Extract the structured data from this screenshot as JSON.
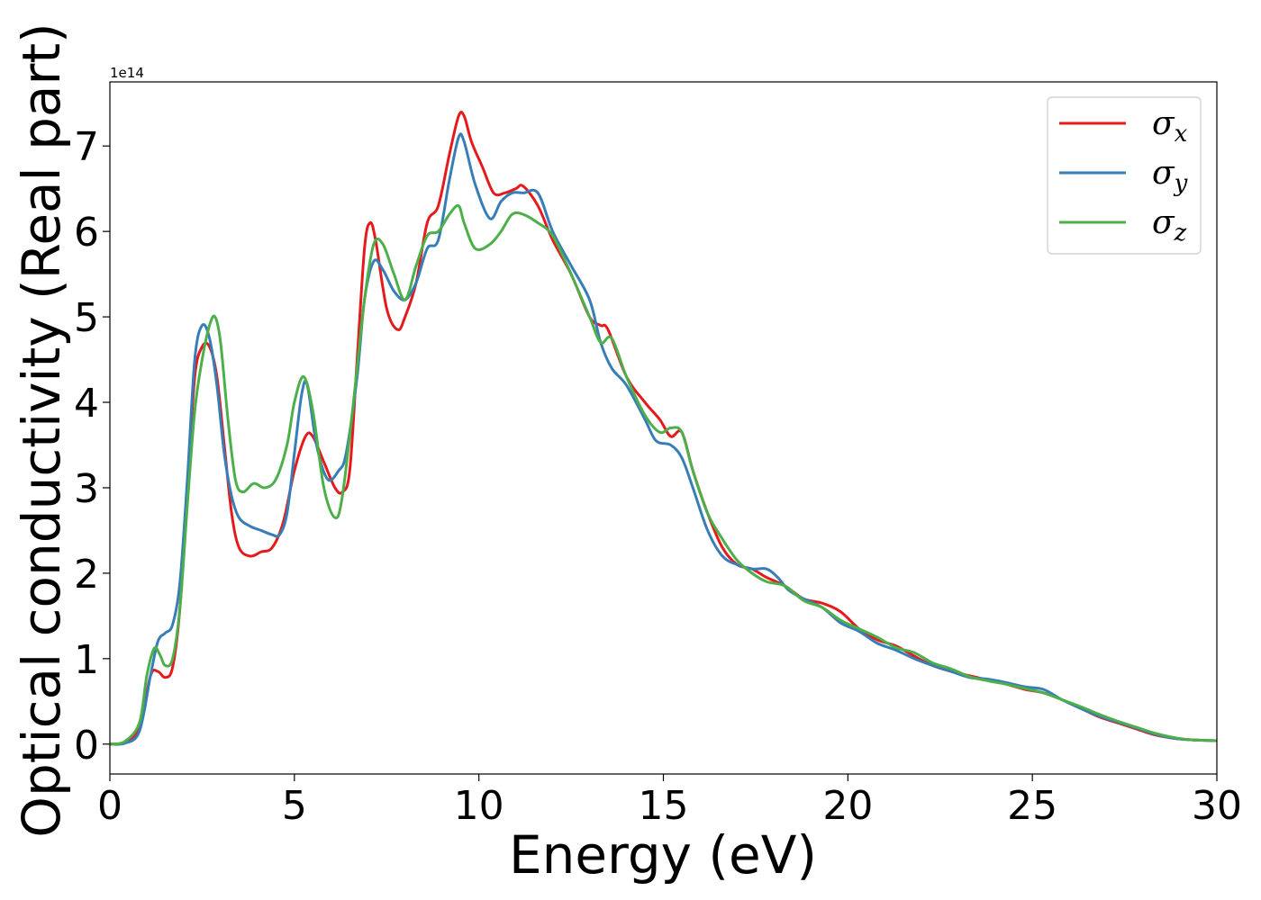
{
  "chart_data": {
    "type": "line",
    "title": "",
    "xlabel": "Energy (eV)",
    "ylabel": "Optical conductivity (Real part)",
    "y_offset_label": "1e14",
    "xlim": [
      0,
      30
    ],
    "ylim": [
      -0.35,
      7.75
    ],
    "x_ticks": [
      0,
      5,
      10,
      15,
      20,
      25,
      30
    ],
    "y_ticks": [
      0,
      1,
      2,
      3,
      4,
      5,
      6,
      7
    ],
    "grid": false,
    "legend_position": "top-right",
    "series": [
      {
        "name": "σx",
        "symbol": "σ",
        "subscript": "x",
        "color": "#e41a1c",
        "points": [
          [
            0,
            0
          ],
          [
            0.4,
            0.02
          ],
          [
            0.8,
            0.2
          ],
          [
            1.1,
            0.8
          ],
          [
            1.3,
            0.85
          ],
          [
            1.5,
            0.78
          ],
          [
            1.7,
            0.9
          ],
          [
            1.9,
            1.6
          ],
          [
            2.1,
            3.0
          ],
          [
            2.3,
            4.3
          ],
          [
            2.5,
            4.65
          ],
          [
            2.7,
            4.65
          ],
          [
            2.9,
            4.3
          ],
          [
            3.1,
            3.5
          ],
          [
            3.3,
            2.7
          ],
          [
            3.5,
            2.3
          ],
          [
            3.8,
            2.2
          ],
          [
            4.1,
            2.25
          ],
          [
            4.4,
            2.3
          ],
          [
            4.7,
            2.6
          ],
          [
            5.0,
            3.2
          ],
          [
            5.3,
            3.6
          ],
          [
            5.5,
            3.6
          ],
          [
            5.8,
            3.3
          ],
          [
            6.1,
            3.0
          ],
          [
            6.3,
            2.95
          ],
          [
            6.5,
            3.2
          ],
          [
            6.7,
            4.5
          ],
          [
            6.9,
            5.8
          ],
          [
            7.05,
            6.1
          ],
          [
            7.2,
            5.9
          ],
          [
            7.5,
            5.1
          ],
          [
            7.8,
            4.85
          ],
          [
            8.0,
            5.0
          ],
          [
            8.3,
            5.4
          ],
          [
            8.6,
            6.1
          ],
          [
            8.9,
            6.3
          ],
          [
            9.2,
            6.9
          ],
          [
            9.45,
            7.35
          ],
          [
            9.6,
            7.35
          ],
          [
            9.8,
            7.05
          ],
          [
            10.1,
            6.75
          ],
          [
            10.4,
            6.45
          ],
          [
            10.7,
            6.45
          ],
          [
            11.0,
            6.5
          ],
          [
            11.2,
            6.53
          ],
          [
            11.6,
            6.3
          ],
          [
            12.0,
            5.9
          ],
          [
            12.5,
            5.5
          ],
          [
            13.0,
            5.0
          ],
          [
            13.3,
            4.9
          ],
          [
            13.5,
            4.85
          ],
          [
            14.0,
            4.3
          ],
          [
            14.5,
            4.0
          ],
          [
            14.9,
            3.8
          ],
          [
            15.2,
            3.6
          ],
          [
            15.5,
            3.65
          ],
          [
            15.8,
            3.2
          ],
          [
            16.2,
            2.7
          ],
          [
            16.6,
            2.3
          ],
          [
            17.0,
            2.1
          ],
          [
            17.4,
            2.05
          ],
          [
            17.8,
            1.95
          ],
          [
            18.3,
            1.85
          ],
          [
            18.8,
            1.7
          ],
          [
            19.3,
            1.65
          ],
          [
            19.8,
            1.55
          ],
          [
            20.3,
            1.35
          ],
          [
            20.8,
            1.22
          ],
          [
            21.3,
            1.15
          ],
          [
            21.8,
            1.03
          ],
          [
            22.3,
            0.92
          ],
          [
            22.8,
            0.85
          ],
          [
            23.3,
            0.8
          ],
          [
            23.8,
            0.75
          ],
          [
            24.3,
            0.7
          ],
          [
            24.8,
            0.64
          ],
          [
            25.3,
            0.6
          ],
          [
            25.8,
            0.52
          ],
          [
            26.3,
            0.42
          ],
          [
            26.8,
            0.32
          ],
          [
            27.3,
            0.25
          ],
          [
            27.8,
            0.18
          ],
          [
            28.3,
            0.11
          ],
          [
            28.8,
            0.07
          ],
          [
            29.3,
            0.05
          ],
          [
            30,
            0.04
          ]
        ]
      },
      {
        "name": "σy",
        "symbol": "σ",
        "subscript": "y",
        "color": "#377eb8",
        "points": [
          [
            0,
            0
          ],
          [
            0.4,
            0.01
          ],
          [
            0.8,
            0.15
          ],
          [
            1.1,
            0.8
          ],
          [
            1.3,
            1.2
          ],
          [
            1.5,
            1.3
          ],
          [
            1.7,
            1.4
          ],
          [
            1.9,
            1.9
          ],
          [
            2.1,
            3.1
          ],
          [
            2.3,
            4.5
          ],
          [
            2.5,
            4.9
          ],
          [
            2.7,
            4.75
          ],
          [
            2.9,
            4.2
          ],
          [
            3.1,
            3.4
          ],
          [
            3.3,
            2.9
          ],
          [
            3.5,
            2.65
          ],
          [
            3.8,
            2.55
          ],
          [
            4.1,
            2.5
          ],
          [
            4.4,
            2.45
          ],
          [
            4.6,
            2.45
          ],
          [
            4.8,
            2.7
          ],
          [
            5.0,
            3.4
          ],
          [
            5.2,
            4.1
          ],
          [
            5.35,
            4.2
          ],
          [
            5.6,
            3.5
          ],
          [
            5.9,
            3.1
          ],
          [
            6.2,
            3.2
          ],
          [
            6.4,
            3.4
          ],
          [
            6.7,
            4.3
          ],
          [
            6.9,
            5.2
          ],
          [
            7.15,
            5.65
          ],
          [
            7.4,
            5.55
          ],
          [
            7.7,
            5.3
          ],
          [
            8.0,
            5.2
          ],
          [
            8.3,
            5.4
          ],
          [
            8.6,
            5.8
          ],
          [
            8.9,
            5.9
          ],
          [
            9.2,
            6.6
          ],
          [
            9.45,
            7.1
          ],
          [
            9.6,
            7.05
          ],
          [
            9.9,
            6.55
          ],
          [
            10.3,
            6.15
          ],
          [
            10.6,
            6.35
          ],
          [
            10.9,
            6.45
          ],
          [
            11.2,
            6.45
          ],
          [
            11.6,
            6.45
          ],
          [
            12.0,
            6.0
          ],
          [
            12.5,
            5.6
          ],
          [
            13.0,
            5.2
          ],
          [
            13.3,
            4.7
          ],
          [
            13.6,
            4.4
          ],
          [
            14.0,
            4.2
          ],
          [
            14.5,
            3.8
          ],
          [
            14.8,
            3.55
          ],
          [
            15.2,
            3.5
          ],
          [
            15.5,
            3.35
          ],
          [
            15.8,
            3.0
          ],
          [
            16.2,
            2.5
          ],
          [
            16.6,
            2.2
          ],
          [
            17.0,
            2.1
          ],
          [
            17.4,
            2.05
          ],
          [
            17.8,
            2.05
          ],
          [
            18.1,
            1.95
          ],
          [
            18.4,
            1.8
          ],
          [
            18.8,
            1.7
          ],
          [
            19.3,
            1.6
          ],
          [
            19.8,
            1.42
          ],
          [
            20.3,
            1.32
          ],
          [
            20.8,
            1.18
          ],
          [
            21.3,
            1.1
          ],
          [
            21.8,
            1.0
          ],
          [
            22.3,
            0.92
          ],
          [
            22.8,
            0.85
          ],
          [
            23.3,
            0.78
          ],
          [
            23.8,
            0.76
          ],
          [
            24.3,
            0.72
          ],
          [
            24.8,
            0.67
          ],
          [
            25.3,
            0.64
          ],
          [
            25.8,
            0.52
          ],
          [
            26.3,
            0.42
          ],
          [
            26.8,
            0.33
          ],
          [
            27.3,
            0.26
          ],
          [
            27.8,
            0.19
          ],
          [
            28.3,
            0.12
          ],
          [
            28.8,
            0.07
          ],
          [
            29.3,
            0.05
          ],
          [
            30,
            0.04
          ]
        ]
      },
      {
        "name": "σz",
        "symbol": "σ",
        "subscript": "z",
        "color": "#4daf4a",
        "points": [
          [
            0,
            0
          ],
          [
            0.4,
            0.03
          ],
          [
            0.8,
            0.25
          ],
          [
            1.0,
            0.8
          ],
          [
            1.2,
            1.12
          ],
          [
            1.35,
            1.05
          ],
          [
            1.5,
            0.92
          ],
          [
            1.7,
            1.0
          ],
          [
            1.9,
            1.6
          ],
          [
            2.1,
            2.8
          ],
          [
            2.3,
            3.9
          ],
          [
            2.5,
            4.5
          ],
          [
            2.7,
            4.9
          ],
          [
            2.85,
            5.0
          ],
          [
            3.0,
            4.7
          ],
          [
            3.2,
            3.8
          ],
          [
            3.4,
            3.1
          ],
          [
            3.6,
            2.95
          ],
          [
            3.9,
            3.05
          ],
          [
            4.2,
            3.0
          ],
          [
            4.5,
            3.1
          ],
          [
            4.8,
            3.5
          ],
          [
            5.0,
            4.0
          ],
          [
            5.25,
            4.3
          ],
          [
            5.5,
            3.9
          ],
          [
            5.8,
            3.0
          ],
          [
            6.1,
            2.65
          ],
          [
            6.3,
            2.9
          ],
          [
            6.6,
            4.0
          ],
          [
            6.9,
            5.2
          ],
          [
            7.15,
            5.85
          ],
          [
            7.4,
            5.85
          ],
          [
            7.7,
            5.5
          ],
          [
            8.0,
            5.2
          ],
          [
            8.3,
            5.6
          ],
          [
            8.6,
            5.95
          ],
          [
            8.9,
            6.0
          ],
          [
            9.2,
            6.2
          ],
          [
            9.45,
            6.3
          ],
          [
            9.6,
            6.1
          ],
          [
            9.9,
            5.8
          ],
          [
            10.3,
            5.85
          ],
          [
            10.6,
            6.0
          ],
          [
            10.9,
            6.2
          ],
          [
            11.2,
            6.2
          ],
          [
            11.6,
            6.1
          ],
          [
            12.0,
            5.95
          ],
          [
            12.5,
            5.5
          ],
          [
            13.0,
            5.0
          ],
          [
            13.3,
            4.7
          ],
          [
            13.6,
            4.75
          ],
          [
            14.0,
            4.3
          ],
          [
            14.5,
            3.85
          ],
          [
            14.9,
            3.65
          ],
          [
            15.2,
            3.7
          ],
          [
            15.5,
            3.65
          ],
          [
            15.8,
            3.2
          ],
          [
            16.2,
            2.7
          ],
          [
            16.6,
            2.4
          ],
          [
            17.0,
            2.15
          ],
          [
            17.4,
            2.0
          ],
          [
            17.8,
            1.9
          ],
          [
            18.3,
            1.85
          ],
          [
            18.8,
            1.68
          ],
          [
            19.3,
            1.6
          ],
          [
            19.8,
            1.45
          ],
          [
            20.3,
            1.35
          ],
          [
            20.8,
            1.25
          ],
          [
            21.3,
            1.13
          ],
          [
            21.8,
            1.07
          ],
          [
            22.3,
            0.95
          ],
          [
            22.8,
            0.88
          ],
          [
            23.3,
            0.79
          ],
          [
            23.8,
            0.74
          ],
          [
            24.3,
            0.7
          ],
          [
            24.8,
            0.65
          ],
          [
            25.3,
            0.6
          ],
          [
            25.8,
            0.52
          ],
          [
            26.3,
            0.44
          ],
          [
            26.8,
            0.35
          ],
          [
            27.3,
            0.27
          ],
          [
            27.8,
            0.2
          ],
          [
            28.3,
            0.13
          ],
          [
            28.8,
            0.08
          ],
          [
            29.3,
            0.05
          ],
          [
            30,
            0.04
          ]
        ]
      }
    ]
  }
}
